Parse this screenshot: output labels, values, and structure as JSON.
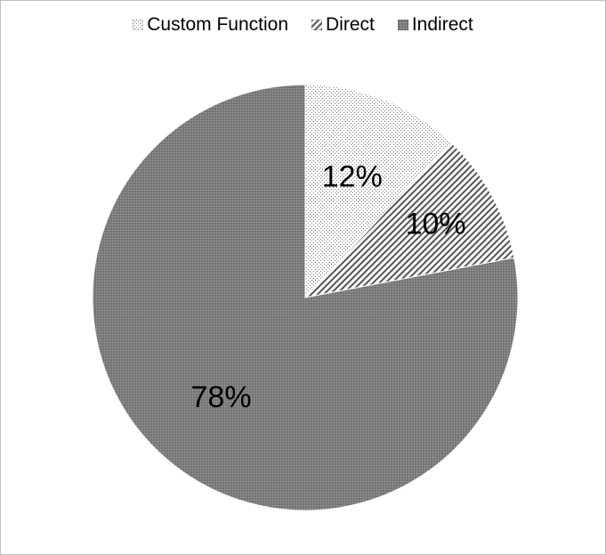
{
  "chart_data": {
    "type": "pie",
    "categories": [
      "Custom Function",
      "Direct",
      "Indirect"
    ],
    "values": [
      12,
      10,
      78
    ],
    "labels": [
      "12%",
      "10%",
      "78%"
    ],
    "start_angle_deg": 0,
    "direction": "clockwise",
    "legend_position": "top",
    "patterns": [
      "dotted",
      "diagonal-hatch",
      "dense-dark"
    ]
  },
  "legend": {
    "items": [
      {
        "label": "Custom Function"
      },
      {
        "label": "Direct"
      },
      {
        "label": "Indirect"
      }
    ]
  }
}
